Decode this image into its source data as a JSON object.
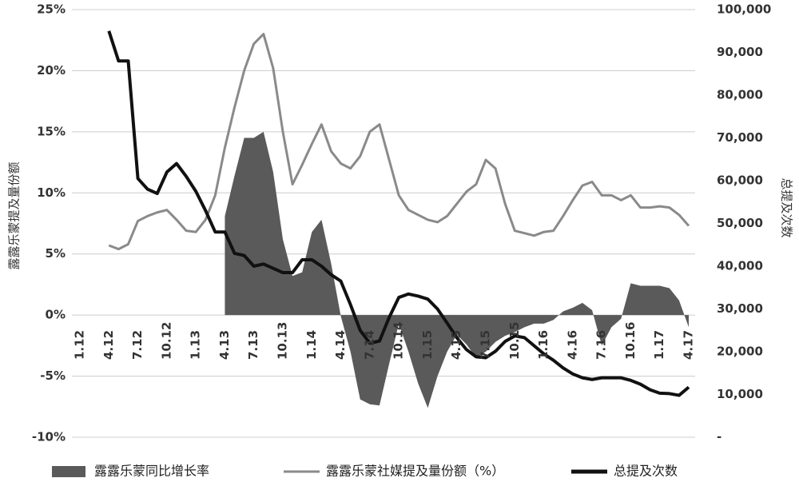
{
  "chart_data": {
    "type": "combo",
    "y_label": "露露乐蒙提及量份额",
    "y2_label": "总提及次数",
    "categories": [
      "1.12",
      null,
      null,
      "4.12",
      null,
      null,
      "7.12",
      null,
      null,
      "10.12",
      null,
      null,
      "1.13",
      null,
      null,
      "4.13",
      null,
      null,
      "7.13",
      null,
      null,
      "10.13",
      null,
      null,
      "1.14",
      null,
      null,
      "4.14",
      null,
      null,
      "7.14",
      null,
      null,
      "10.14",
      null,
      null,
      "1.15",
      null,
      null,
      "4.15",
      null,
      null,
      "7.15",
      null,
      null,
      "10.15",
      null,
      null,
      "1.16",
      null,
      null,
      "4.16",
      null,
      null,
      "7.16",
      null,
      null,
      "10.16",
      null,
      null,
      "1.17",
      null,
      null,
      "4.17"
    ],
    "ylim": [
      -10,
      25
    ],
    "yticks": [
      {
        "value": -10,
        "label": "-10%"
      },
      {
        "value": -5,
        "label": "-5%"
      },
      {
        "value": 0,
        "label": "0%"
      },
      {
        "value": 5,
        "label": "5%"
      },
      {
        "value": 10,
        "label": "10%"
      },
      {
        "value": 15,
        "label": "15%"
      },
      {
        "value": 20,
        "label": "20%"
      },
      {
        "value": 25,
        "label": "25%"
      }
    ],
    "y2lim": [
      0,
      100000
    ],
    "y2ticks": [
      {
        "value": 0,
        "label": "-"
      },
      {
        "value": 10000,
        "label": "10,000"
      },
      {
        "value": 20000,
        "label": "20,000"
      },
      {
        "value": 30000,
        "label": "30,000"
      },
      {
        "value": 40000,
        "label": "40,000"
      },
      {
        "value": 50000,
        "label": "50,000"
      },
      {
        "value": 60000,
        "label": "60,000"
      },
      {
        "value": 70000,
        "label": "70,000"
      },
      {
        "value": 80000,
        "label": "80,000"
      },
      {
        "value": 90000,
        "label": "90,000"
      },
      {
        "value": 100000,
        "label": "100,000"
      }
    ],
    "grid": true,
    "legend": "bottom",
    "series": [
      {
        "name": "露露乐蒙同比增长率",
        "type": "area",
        "color": "#5a5a5a",
        "axis": "y",
        "values": [
          null,
          null,
          null,
          null,
          null,
          null,
          null,
          null,
          null,
          null,
          null,
          null,
          null,
          null,
          null,
          8.1,
          11.4,
          14.5,
          14.5,
          15.0,
          11.7,
          6.2,
          3.2,
          3.5,
          6.8,
          7.8,
          4.2,
          -0.1,
          -3.0,
          -6.9,
          -7.3,
          -7.4,
          -4.0,
          -0.7,
          -3.0,
          -5.6,
          -7.6,
          -5.0,
          -3.0,
          -1.6,
          -2.4,
          -3.5,
          -3.0,
          -2.2,
          -1.7,
          -1.4,
          -1.0,
          -0.7,
          -0.7,
          -0.4,
          0.3,
          0.6,
          1.0,
          0.4,
          -2.5,
          -1.0,
          -0.3,
          2.6,
          2.4,
          2.4,
          2.4,
          2.2,
          1.2,
          -1.0
        ]
      },
      {
        "name": "露露乐蒙社媒提及量份额（%）",
        "type": "line",
        "color": "#8a8a8a",
        "axis": "y",
        "values": [
          null,
          null,
          null,
          5.7,
          5.4,
          5.8,
          7.7,
          8.1,
          8.4,
          8.6,
          7.8,
          6.9,
          6.8,
          7.8,
          9.8,
          13.7,
          17.0,
          20.0,
          22.2,
          23.0,
          20.2,
          15.0,
          10.7,
          12.3,
          14.0,
          15.6,
          13.4,
          12.4,
          12.0,
          13.0,
          15.0,
          15.6,
          12.7,
          9.8,
          8.6,
          8.2,
          7.8,
          7.6,
          8.1,
          9.1,
          10.1,
          10.7,
          12.7,
          12.0,
          9.1,
          6.9,
          6.7,
          6.5,
          6.8,
          6.9,
          8.1,
          9.4,
          10.6,
          10.9,
          9.8,
          9.8,
          9.4,
          9.8,
          8.8,
          8.8,
          8.9,
          8.8,
          8.2,
          7.3
        ]
      },
      {
        "name": "总提及次数",
        "type": "line",
        "color": "#111111",
        "axis": "y2",
        "values": [
          null,
          null,
          null,
          95000,
          88000,
          88000,
          60500,
          58000,
          57000,
          62000,
          64000,
          61000,
          57500,
          53000,
          48000,
          48000,
          43000,
          42500,
          40000,
          40500,
          39500,
          38500,
          38500,
          41500,
          41500,
          40000,
          38000,
          36500,
          31000,
          25000,
          22000,
          22500,
          28000,
          32700,
          33500,
          33000,
          32300,
          30000,
          26700,
          23300,
          20500,
          18800,
          18600,
          20100,
          22400,
          23700,
          23300,
          21400,
          19500,
          18000,
          16200,
          14800,
          13900,
          13500,
          13900,
          13900,
          13900,
          13300,
          12400,
          11100,
          10300,
          10200,
          9800,
          11700
        ]
      }
    ]
  }
}
